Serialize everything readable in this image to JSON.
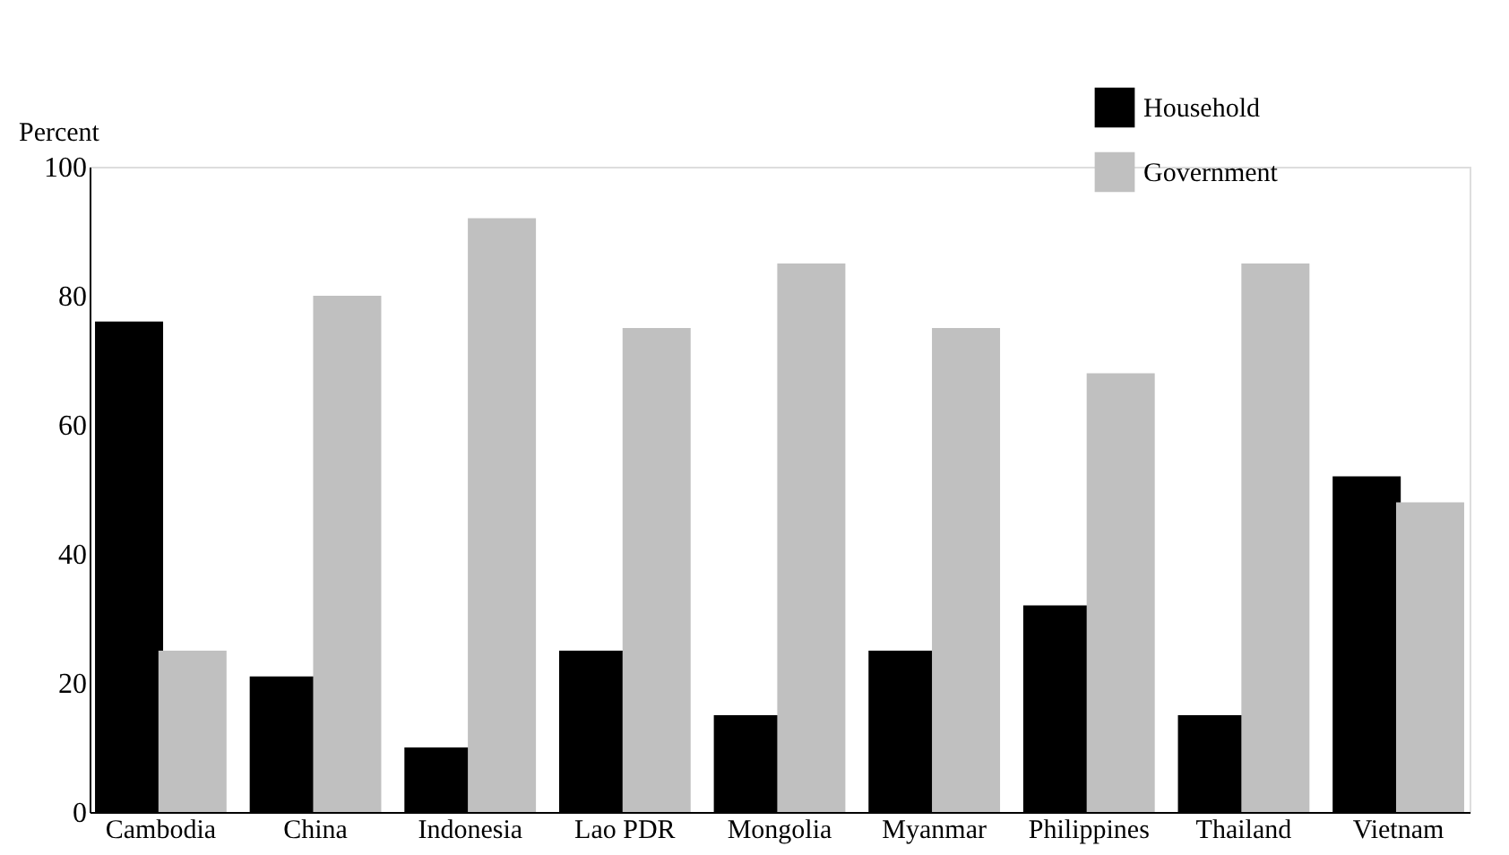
{
  "chart_data": {
    "type": "bar",
    "ylabel": "Percent",
    "categories": [
      "Cambodia",
      "China",
      "Indonesia",
      "Lao PDR",
      "Mongolia",
      "Myanmar",
      "Philippines",
      "Thailand",
      "Vietnam"
    ],
    "series": [
      {
        "name": "Household",
        "color": "#000000",
        "values": [
          76,
          21,
          10,
          25,
          15,
          25,
          32,
          15,
          52
        ]
      },
      {
        "name": "Government",
        "color": "#c0c0c0",
        "values": [
          25,
          80,
          92,
          75,
          85,
          75,
          68,
          85,
          48
        ]
      }
    ],
    "ylim": [
      0,
      100
    ],
    "yticks": [
      0,
      20,
      40,
      60,
      80,
      100
    ],
    "grid": false,
    "legend": "top right"
  }
}
